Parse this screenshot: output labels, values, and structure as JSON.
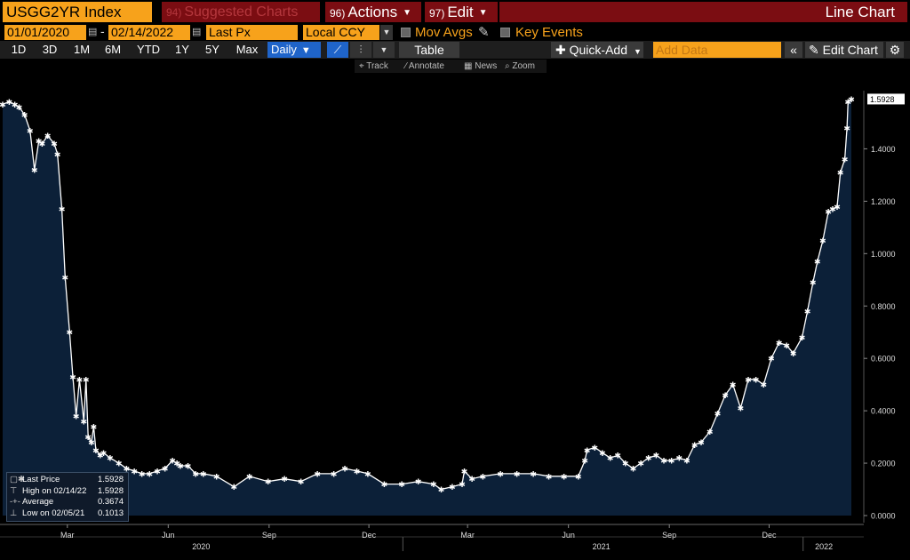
{
  "header": {
    "ticker": "USGG2YR Index",
    "suggested_num": "94)",
    "suggested_label": "Suggested Charts",
    "actions_num": "96)",
    "actions_label": "Actions",
    "edit_num": "97)",
    "edit_label": "Edit",
    "chart_type": "Line Chart"
  },
  "settings": {
    "start_date": "01/01/2020",
    "end_date": "02/14/2022",
    "field": "Last Px",
    "currency": "Local CCY",
    "mov_avgs_label": "Mov Avgs",
    "key_events_label": "Key Events"
  },
  "toolbar": {
    "timeframes": [
      "1D",
      "3D",
      "1M",
      "6M",
      "YTD",
      "1Y",
      "5Y",
      "Max"
    ],
    "period": "Daily",
    "table_label": "Table",
    "quick_add_label": "Quick-Add",
    "add_data_placeholder": "Add Data",
    "edit_chart_label": "Edit Chart"
  },
  "tools": {
    "track": "Track",
    "annotate": "Annotate",
    "news": "News",
    "zoom": "Zoom"
  },
  "legend": {
    "last_price_label": "Last Price",
    "last_price_value": "1.5928",
    "high_label": "High on 02/14/22",
    "high_value": "1.5928",
    "average_label": "Average",
    "average_value": "0.3674",
    "low_label": "Low on 02/05/21",
    "low_value": "0.1013"
  },
  "colors": {
    "accent": "#f7a21b",
    "header_red": "#7b0d12",
    "active_blue": "#1f64c9",
    "area_fill": "#0c2038",
    "line": "#ffffff"
  },
  "chart_data": {
    "type": "area",
    "title": "",
    "xlabel": "",
    "ylabel": "",
    "ylim": [
      0,
      1.6
    ],
    "yticks": [
      "0.0000",
      "0.2000",
      "0.4000",
      "0.6000",
      "0.8000",
      "1.0000",
      "1.2000",
      "1.4000"
    ],
    "last_value_label": "1.5928",
    "month_ticks": [
      {
        "date": "2020-03-01",
        "label": "Mar"
      },
      {
        "date": "2020-06-01",
        "label": "Jun"
      },
      {
        "date": "2020-09-01",
        "label": "Sep"
      },
      {
        "date": "2020-12-01",
        "label": "Dec"
      },
      {
        "date": "2021-03-01",
        "label": "Mar"
      },
      {
        "date": "2021-06-01",
        "label": "Jun"
      },
      {
        "date": "2021-09-01",
        "label": "Sep"
      },
      {
        "date": "2021-12-01",
        "label": "Dec"
      }
    ],
    "year_labels": [
      {
        "date": "2020-07-01",
        "label": "2020"
      },
      {
        "date": "2021-07-01",
        "label": "2021"
      },
      {
        "date": "2022-01-20",
        "label": "2022"
      }
    ],
    "year_separators": [
      "2021-01-01",
      "2022-01-01"
    ],
    "series": [
      {
        "x": [
          "2020-01-02",
          "2020-01-08",
          "2020-01-13",
          "2020-01-17",
          "2020-01-22",
          "2020-01-27",
          "2020-01-31",
          "2020-02-04",
          "2020-02-07",
          "2020-02-12",
          "2020-02-18",
          "2020-02-21",
          "2020-02-25",
          "2020-02-28",
          "2020-03-03",
          "2020-03-06",
          "2020-03-09",
          "2020-03-12",
          "2020-03-16",
          "2020-03-18",
          "2020-03-20",
          "2020-03-23",
          "2020-03-25",
          "2020-03-27",
          "2020-03-31",
          "2020-04-03",
          "2020-04-09",
          "2020-04-17",
          "2020-04-24",
          "2020-05-01",
          "2020-05-08",
          "2020-05-15",
          "2020-05-22",
          "2020-05-29",
          "2020-06-05",
          "2020-06-09",
          "2020-06-12",
          "2020-06-19",
          "2020-06-26",
          "2020-07-03",
          "2020-07-15",
          "2020-07-31",
          "2020-08-14",
          "2020-08-31",
          "2020-09-15",
          "2020-09-30",
          "2020-10-15",
          "2020-10-30",
          "2020-11-09",
          "2020-11-20",
          "2020-11-30",
          "2020-12-15",
          "2020-12-31",
          "2021-01-15",
          "2021-01-29",
          "2021-02-05",
          "2021-02-15",
          "2021-02-24",
          "2021-02-26",
          "2021-03-05",
          "2021-03-15",
          "2021-03-31",
          "2021-04-15",
          "2021-04-30",
          "2021-05-14",
          "2021-05-28",
          "2021-06-10",
          "2021-06-16",
          "2021-06-18",
          "2021-06-25",
          "2021-07-02",
          "2021-07-09",
          "2021-07-16",
          "2021-07-23",
          "2021-07-30",
          "2021-08-06",
          "2021-08-13",
          "2021-08-20",
          "2021-08-27",
          "2021-09-03",
          "2021-09-10",
          "2021-09-17",
          "2021-09-24",
          "2021-09-30",
          "2021-10-08",
          "2021-10-15",
          "2021-10-22",
          "2021-10-29",
          "2021-11-05",
          "2021-11-12",
          "2021-11-19",
          "2021-11-26",
          "2021-12-03",
          "2021-12-10",
          "2021-12-17",
          "2021-12-23",
          "2021-12-31",
          "2022-01-05",
          "2022-01-10",
          "2022-01-14",
          "2022-01-19",
          "2022-01-24",
          "2022-01-28",
          "2022-02-01",
          "2022-02-04",
          "2022-02-08",
          "2022-02-10",
          "2022-02-11",
          "2022-02-14"
        ],
        "values": [
          1.57,
          1.58,
          1.57,
          1.56,
          1.53,
          1.47,
          1.32,
          1.43,
          1.42,
          1.45,
          1.42,
          1.38,
          1.17,
          0.91,
          0.7,
          0.53,
          0.38,
          0.52,
          0.36,
          0.52,
          0.3,
          0.28,
          0.34,
          0.25,
          0.23,
          0.24,
          0.22,
          0.2,
          0.18,
          0.17,
          0.16,
          0.16,
          0.17,
          0.18,
          0.21,
          0.2,
          0.19,
          0.19,
          0.16,
          0.16,
          0.15,
          0.11,
          0.15,
          0.13,
          0.14,
          0.13,
          0.16,
          0.16,
          0.18,
          0.17,
          0.16,
          0.12,
          0.12,
          0.13,
          0.12,
          0.1,
          0.11,
          0.12,
          0.17,
          0.14,
          0.15,
          0.16,
          0.16,
          0.16,
          0.15,
          0.15,
          0.15,
          0.21,
          0.25,
          0.26,
          0.24,
          0.22,
          0.23,
          0.2,
          0.18,
          0.2,
          0.22,
          0.23,
          0.21,
          0.21,
          0.22,
          0.21,
          0.27,
          0.28,
          0.32,
          0.39,
          0.46,
          0.5,
          0.41,
          0.52,
          0.52,
          0.5,
          0.6,
          0.66,
          0.65,
          0.62,
          0.68,
          0.78,
          0.89,
          0.97,
          1.05,
          1.16,
          1.17,
          1.18,
          1.31,
          1.36,
          1.48,
          1.58,
          1.59
        ]
      }
    ]
  }
}
